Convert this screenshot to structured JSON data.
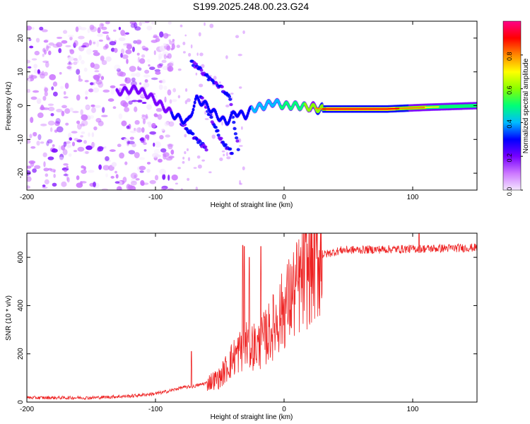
{
  "title": "S199.2025.248.00.23.G24",
  "chart_data": [
    {
      "type": "heatmap",
      "name": "spectrogram",
      "xlabel": "Height of straight line (km)",
      "ylabel": "Frequency (Hz)",
      "xlim": [
        -200,
        150
      ],
      "ylim": [
        -25,
        25
      ],
      "xticks": [
        -200,
        -100,
        0,
        100
      ],
      "yticks": [
        -20,
        -10,
        0,
        10,
        20
      ],
      "colorbar": {
        "label": "Normalized spectral amplitude",
        "range": [
          0,
          1
        ],
        "ticks": [
          0.0,
          0.2,
          0.4,
          0.6,
          0.8
        ],
        "tick_labels": [
          "0.0",
          "0.2",
          "0.4",
          "0.6",
          "0.8"
        ],
        "colors": [
          "#f4e6ff",
          "#cc77ff",
          "#7700ff",
          "#0000ff",
          "#00bbff",
          "#00ff77",
          "#88ff00",
          "#ffff00",
          "#ff8800",
          "#ff0000",
          "#ff0088"
        ]
      },
      "main_track": [
        {
          "x": -130,
          "f": 4,
          "a": 0.22
        },
        {
          "x": -115,
          "f": 5,
          "a": 0.22
        },
        {
          "x": -105,
          "f": 3,
          "a": 0.25
        },
        {
          "x": -95,
          "f": 0,
          "a": 0.28
        },
        {
          "x": -85,
          "f": -3,
          "a": 0.3
        },
        {
          "x": -75,
          "f": -5,
          "a": 0.32
        },
        {
          "x": -68,
          "f": 2,
          "a": 0.35
        },
        {
          "x": -60,
          "f": 0,
          "a": 0.35
        },
        {
          "x": -52,
          "f": -3,
          "a": 0.3
        },
        {
          "x": -45,
          "f": -5,
          "a": 0.3
        },
        {
          "x": -38,
          "f": -2,
          "a": 0.35
        },
        {
          "x": -30,
          "f": -3,
          "a": 0.35
        },
        {
          "x": -25,
          "f": -1,
          "a": 0.42
        },
        {
          "x": -15,
          "f": 0,
          "a": 0.45
        },
        {
          "x": -8,
          "f": 1,
          "a": 0.5
        },
        {
          "x": 0,
          "f": 0,
          "a": 0.55
        },
        {
          "x": 10,
          "f": 0,
          "a": 0.6
        },
        {
          "x": 30,
          "f": -1,
          "a": 0.75
        },
        {
          "x": 50,
          "f": -1,
          "a": 0.85
        },
        {
          "x": 80,
          "f": -1,
          "a": 0.8
        },
        {
          "x": 110,
          "f": -0.5,
          "a": 0.65
        },
        {
          "x": 150,
          "f": 0,
          "a": 0.55
        }
      ],
      "secondary_tracks": [
        [
          {
            "x": -72,
            "f": 13
          },
          {
            "x": -58,
            "f": 8
          },
          {
            "x": -48,
            "f": 5
          },
          {
            "x": -42,
            "f": 2
          },
          {
            "x": -35,
            "f": -14
          }
        ],
        [
          {
            "x": -80,
            "f": -5
          },
          {
            "x": -68,
            "f": -10
          },
          {
            "x": -60,
            "f": -13
          }
        ],
        [
          {
            "x": -65,
            "f": 3
          },
          {
            "x": -55,
            "f": -5
          },
          {
            "x": -48,
            "f": -11
          },
          {
            "x": -40,
            "f": -14
          }
        ]
      ]
    },
    {
      "type": "line",
      "name": "snr",
      "xlabel": "Height of straight line (km)",
      "ylabel": "SNR (10 * v/v)",
      "xlim": [
        -200,
        150
      ],
      "ylim": [
        0,
        700
      ],
      "xticks": [
        -200,
        -100,
        0,
        100
      ],
      "yticks": [
        0,
        200,
        400,
        600
      ],
      "color": "#ee2222",
      "profile": [
        {
          "x": -200,
          "y": 18
        },
        {
          "x": -150,
          "y": 18
        },
        {
          "x": -120,
          "y": 25
        },
        {
          "x": -100,
          "y": 35
        },
        {
          "x": -90,
          "y": 45
        },
        {
          "x": -80,
          "y": 60
        },
        {
          "x": -70,
          "y": 65
        },
        {
          "x": -60,
          "y": 80
        },
        {
          "x": -50,
          "y": 100
        },
        {
          "x": -40,
          "y": 180
        },
        {
          "x": -30,
          "y": 240
        },
        {
          "x": -20,
          "y": 230
        },
        {
          "x": -10,
          "y": 300
        },
        {
          "x": 0,
          "y": 390
        },
        {
          "x": 10,
          "y": 470
        },
        {
          "x": 20,
          "y": 560
        },
        {
          "x": 30,
          "y": 610
        },
        {
          "x": 45,
          "y": 630
        },
        {
          "x": 100,
          "y": 635
        },
        {
          "x": 150,
          "y": 640
        }
      ],
      "spikes": [
        {
          "x": -72,
          "y": 210
        },
        {
          "x": -32,
          "y": 650
        },
        {
          "x": -31,
          "y": 645
        },
        {
          "x": -27,
          "y": 600
        },
        {
          "x": -18,
          "y": 645
        },
        {
          "x": 105,
          "y": 700
        }
      ]
    }
  ]
}
